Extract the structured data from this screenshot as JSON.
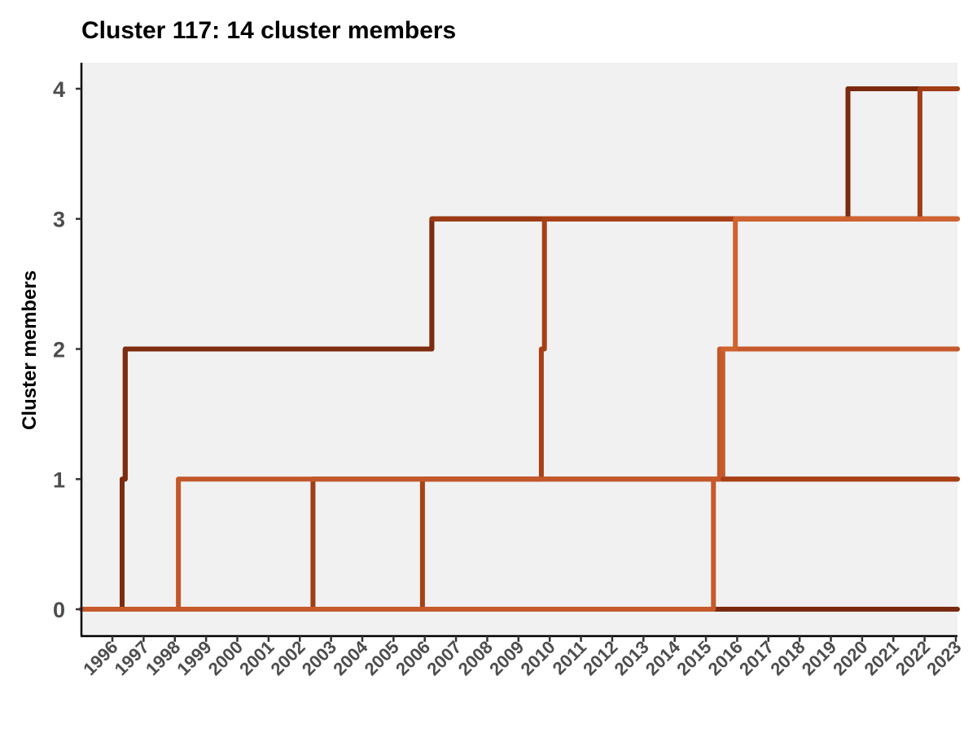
{
  "chart_data": {
    "type": "line",
    "title": "Cluster 117: 14 cluster members",
    "xlabel": "",
    "ylabel": "Cluster members",
    "x_tick_labels": [
      "1996",
      "1997",
      "1998",
      "1999",
      "2000",
      "2001",
      "2002",
      "2003",
      "2004",
      "2005",
      "2006",
      "2007",
      "2008",
      "2009",
      "2010",
      "2011",
      "2012",
      "2013",
      "2014",
      "2015",
      "2016",
      "2017",
      "2018",
      "2019",
      "2020",
      "2021",
      "2022",
      "2023"
    ],
    "y_ticks": [
      0,
      1,
      2,
      3,
      4
    ],
    "xlim": [
      1995.0,
      2023.0
    ],
    "ylim": [
      -0.2,
      4.2
    ],
    "grid": false,
    "legend": "none",
    "panel_background": "#f1f1f1",
    "step": true,
    "series": [
      {
        "color": "#7a2b0f",
        "x": [
          1995.0,
          2036.3,
          1996.3,
          1996.4,
          2006.2,
          2006.2,
          2019.5,
          2019.5,
          2023.0
        ],
        "y": [
          0,
          0,
          1,
          2,
          2,
          3,
          3,
          4,
          4
        ]
      },
      {
        "color": "#7a2b0f",
        "x": [
          2019.5,
          2019.5,
          2023.0
        ],
        "y": [
          3,
          4,
          4
        ]
      },
      {
        "color": "#7d2c10",
        "x": [
          1995.0,
          1996.3,
          1996.3,
          1996.4,
          1996.4,
          2006.2,
          2006.2,
          2009.8,
          2009.8
        ],
        "y": [
          0,
          0,
          1,
          1,
          2,
          2,
          3,
          3,
          3
        ]
      },
      {
        "color": "#9c3a14",
        "x": [
          2006.2,
          2009.8,
          2023.0
        ],
        "y": [
          3,
          3,
          3
        ]
      },
      {
        "color": "#a13d15",
        "x": [
          2009.8,
          2021.8,
          2021.8,
          2023.0
        ],
        "y": [
          3,
          3,
          4,
          4
        ]
      },
      {
        "color": "#a13d15",
        "x": [
          1995.0,
          2002.4,
          2002.4,
          2023.0
        ],
        "y": [
          0,
          0,
          1,
          1
        ]
      },
      {
        "color": "#a84016",
        "x": [
          1995.0,
          2005.9,
          2005.9,
          2009.7,
          2009.7,
          2009.8,
          2009.8,
          2023.0
        ],
        "y": [
          0,
          0,
          1,
          1,
          2,
          2,
          3,
          3
        ]
      },
      {
        "color": "#c2572a",
        "x": [
          1995.0,
          1998.1,
          1998.1,
          2015.4,
          2015.4,
          2015.6,
          2015.6,
          2023.0
        ],
        "y": [
          0,
          0,
          1,
          1,
          2,
          2,
          2,
          2
        ]
      },
      {
        "color": "#c65a2c",
        "x": [
          1995.0,
          2005.9,
          2005.9,
          2015.2,
          2015.2,
          2015.5,
          2015.5,
          2023.0
        ],
        "y": [
          0,
          0,
          0,
          0,
          1,
          1,
          2,
          2
        ]
      },
      {
        "color": "#d0632f",
        "x": [
          2015.5,
          2015.9,
          2015.9,
          2023.0
        ],
        "y": [
          2,
          2,
          3,
          3
        ]
      },
      {
        "color": "#a84016",
        "x": [
          2015.5,
          2023.0
        ],
        "y": [
          1,
          1
        ]
      }
    ]
  }
}
